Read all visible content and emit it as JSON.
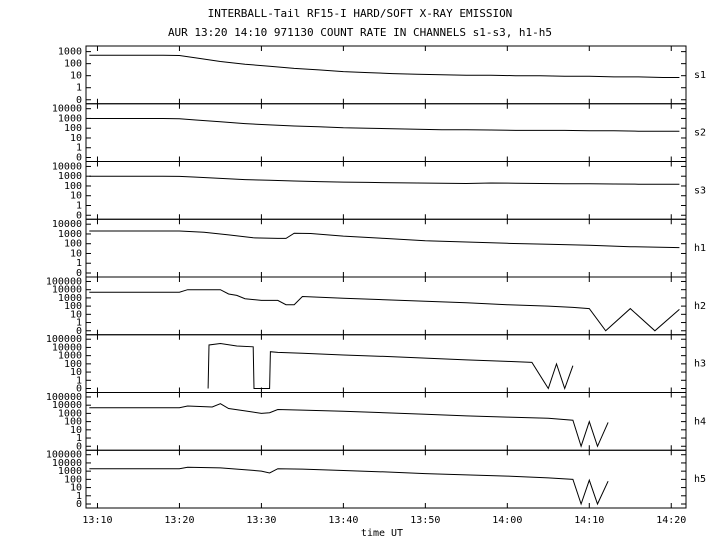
{
  "title": "INTERBALL-Tail RF15-I HARD/SOFT X-RAY EMISSION",
  "subtitle": "AUR 13:20 14:10 971130  COUNT RATE IN CHANNELS s1-s3, h1-h5",
  "x_axis": {
    "xlabel": "time UT",
    "xlim": [
      788.6,
      861.8
    ],
    "xticks": [
      {
        "value": 790,
        "label": "13:10"
      },
      {
        "value": 800,
        "label": "13:20"
      },
      {
        "value": 810,
        "label": "13:30"
      },
      {
        "value": 820,
        "label": "13:40"
      },
      {
        "value": 830,
        "label": "13:50"
      },
      {
        "value": 840,
        "label": "14:00"
      },
      {
        "value": 850,
        "label": "14:10"
      },
      {
        "value": 860,
        "label": "14:20"
      }
    ]
  },
  "chart_data": [
    {
      "type": "line",
      "label": "s1",
      "yscale": "log",
      "color": "#000000",
      "ylim": [
        0,
        2000
      ],
      "yticks": [
        0,
        1,
        10,
        100,
        1000
      ],
      "x": [
        789,
        792,
        795,
        798,
        800,
        802,
        805,
        808,
        811,
        814,
        817,
        820,
        823,
        826,
        829,
        832,
        835,
        838,
        841,
        844,
        847,
        850,
        853,
        856,
        859,
        861
      ],
      "values": [
        500,
        500,
        500,
        500,
        480,
        300,
        150,
        90,
        60,
        40,
        30,
        22,
        18,
        15,
        13,
        12,
        11,
        11,
        10,
        10,
        9,
        9,
        8,
        8,
        7,
        7
      ]
    },
    {
      "type": "line",
      "label": "s2",
      "yscale": "log",
      "color": "#000000",
      "ylim": [
        0,
        20000
      ],
      "yticks": [
        0,
        1,
        10,
        100,
        1000,
        10000
      ],
      "x": [
        789,
        792,
        795,
        798,
        800,
        802,
        805,
        808,
        811,
        814,
        817,
        820,
        823,
        826,
        829,
        832,
        835,
        838,
        841,
        844,
        847,
        850,
        853,
        856,
        859,
        861
      ],
      "values": [
        1000,
        1000,
        1000,
        1000,
        950,
        700,
        450,
        300,
        220,
        170,
        140,
        110,
        100,
        90,
        80,
        70,
        70,
        65,
        60,
        60,
        60,
        55,
        55,
        50,
        50,
        50
      ]
    },
    {
      "type": "line",
      "label": "s3",
      "yscale": "log",
      "color": "#000000",
      "ylim": [
        0,
        20000
      ],
      "yticks": [
        0,
        1,
        10,
        100,
        1000,
        10000
      ],
      "x": [
        789,
        792,
        795,
        798,
        800,
        802,
        805,
        808,
        811,
        814,
        817,
        820,
        823,
        826,
        829,
        832,
        835,
        838,
        841,
        844,
        847,
        850,
        853,
        856,
        859,
        861
      ],
      "values": [
        1000,
        1000,
        1000,
        1000,
        950,
        800,
        600,
        450,
        380,
        320,
        280,
        250,
        230,
        210,
        200,
        190,
        180,
        200,
        190,
        180,
        170,
        170,
        160,
        150,
        150,
        150
      ]
    },
    {
      "type": "line",
      "label": "h1",
      "yscale": "log",
      "color": "#000000",
      "ylim": [
        0,
        20000
      ],
      "yticks": [
        0,
        1,
        10,
        100,
        1000,
        10000
      ],
      "x": [
        789,
        800,
        803,
        806,
        809,
        812,
        813,
        814,
        816,
        820,
        825,
        830,
        835,
        840,
        845,
        850,
        855,
        861
      ],
      "values": [
        2000,
        2000,
        1500,
        800,
        400,
        350,
        350,
        1200,
        1100,
        600,
        350,
        200,
        150,
        110,
        90,
        70,
        50,
        40
      ]
    },
    {
      "type": "line",
      "label": "h2",
      "yscale": "log",
      "color": "#000000",
      "ylim": [
        0,
        200000
      ],
      "yticks": [
        0,
        1,
        10,
        100,
        1000,
        10000,
        100000
      ],
      "x": [
        789,
        800,
        801,
        805,
        806,
        807,
        808,
        810,
        812,
        813,
        814,
        815,
        820,
        825,
        830,
        835,
        840,
        845,
        848,
        850,
        852,
        855,
        858,
        861
      ],
      "values": [
        5000,
        5000,
        10000,
        10000,
        3000,
        2000,
        800,
        500,
        500,
        150,
        150,
        1500,
        900,
        600,
        400,
        250,
        150,
        100,
        70,
        50,
        0,
        50,
        0,
        40
      ]
    },
    {
      "type": "line",
      "label": "h3",
      "yscale": "log",
      "color": "#000000",
      "ylim": [
        0,
        200000
      ],
      "yticks": [
        0,
        1,
        10,
        100,
        1000,
        10000,
        100000
      ],
      "x": [
        803.5,
        803.6,
        805,
        807,
        809,
        809.1,
        811,
        811.1,
        812,
        815,
        820,
        825,
        830,
        835,
        840,
        843,
        845,
        846,
        847,
        848
      ],
      "values": [
        0,
        20000,
        30000,
        15000,
        12000,
        0,
        0,
        3000,
        2500,
        2000,
        1200,
        800,
        500,
        300,
        200,
        150,
        0,
        100,
        0,
        60
      ]
    },
    {
      "type": "line",
      "label": "h4",
      "yscale": "log",
      "color": "#000000",
      "ylim": [
        0,
        200000
      ],
      "yticks": [
        0,
        1,
        10,
        100,
        1000,
        10000,
        100000
      ],
      "x": [
        789,
        800,
        801,
        804,
        805,
        806,
        808,
        810,
        811,
        812,
        815,
        820,
        825,
        830,
        835,
        840,
        845,
        848,
        849,
        850,
        851,
        852.3
      ],
      "values": [
        5000,
        5000,
        8000,
        6000,
        15000,
        4000,
        2000,
        1000,
        1200,
        3000,
        2500,
        1800,
        1200,
        800,
        500,
        350,
        250,
        150,
        0,
        100,
        0,
        80
      ]
    },
    {
      "type": "line",
      "label": "h5",
      "yscale": "log",
      "color": "#000000",
      "ylim": [
        0,
        200000
      ],
      "yticks": [
        0,
        1,
        10,
        100,
        1000,
        10000,
        100000
      ],
      "x": [
        789,
        800,
        801,
        805,
        808,
        810,
        811,
        812,
        815,
        820,
        825,
        830,
        835,
        840,
        845,
        848,
        849,
        850,
        851,
        852.3
      ],
      "values": [
        2000,
        2000,
        3000,
        2500,
        1500,
        1000,
        600,
        2000,
        1800,
        1200,
        800,
        500,
        350,
        250,
        150,
        100,
        0,
        80,
        0,
        60
      ]
    }
  ]
}
